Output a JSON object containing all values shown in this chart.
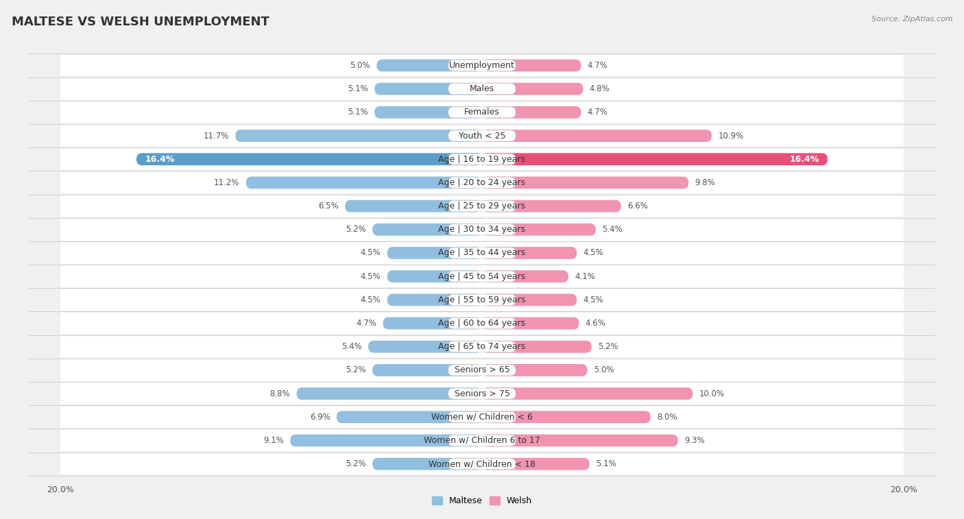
{
  "title": "MALTESE VS WELSH UNEMPLOYMENT",
  "source": "Source: ZipAtlas.com",
  "categories": [
    "Unemployment",
    "Males",
    "Females",
    "Youth < 25",
    "Age | 16 to 19 years",
    "Age | 20 to 24 years",
    "Age | 25 to 29 years",
    "Age | 30 to 34 years",
    "Age | 35 to 44 years",
    "Age | 45 to 54 years",
    "Age | 55 to 59 years",
    "Age | 60 to 64 years",
    "Age | 65 to 74 years",
    "Seniors > 65",
    "Seniors > 75",
    "Women w/ Children < 6",
    "Women w/ Children 6 to 17",
    "Women w/ Children < 18"
  ],
  "maltese": [
    5.0,
    5.1,
    5.1,
    11.7,
    16.4,
    11.2,
    6.5,
    5.2,
    4.5,
    4.5,
    4.5,
    4.7,
    5.4,
    5.2,
    8.8,
    6.9,
    9.1,
    5.2
  ],
  "welsh": [
    4.7,
    4.8,
    4.7,
    10.9,
    16.4,
    9.8,
    6.6,
    5.4,
    4.5,
    4.1,
    4.5,
    4.6,
    5.2,
    5.0,
    10.0,
    8.0,
    9.3,
    5.1
  ],
  "maltese_color": "#92bfdf",
  "welsh_color": "#f094b0",
  "maltese_label": "Maltese",
  "welsh_label": "Welsh",
  "highlight_color_maltese": "#5b9ec9",
  "highlight_color_welsh": "#e8507a",
  "highlight_idx": 4,
  "max_val": 20.0,
  "bg_color": "#f0f0f0",
  "row_bg_color": "#ffffff",
  "separator_color": "#d0d0d0",
  "title_fontsize": 13,
  "label_fontsize": 9,
  "value_fontsize": 8.5,
  "axis_label_fontsize": 9
}
